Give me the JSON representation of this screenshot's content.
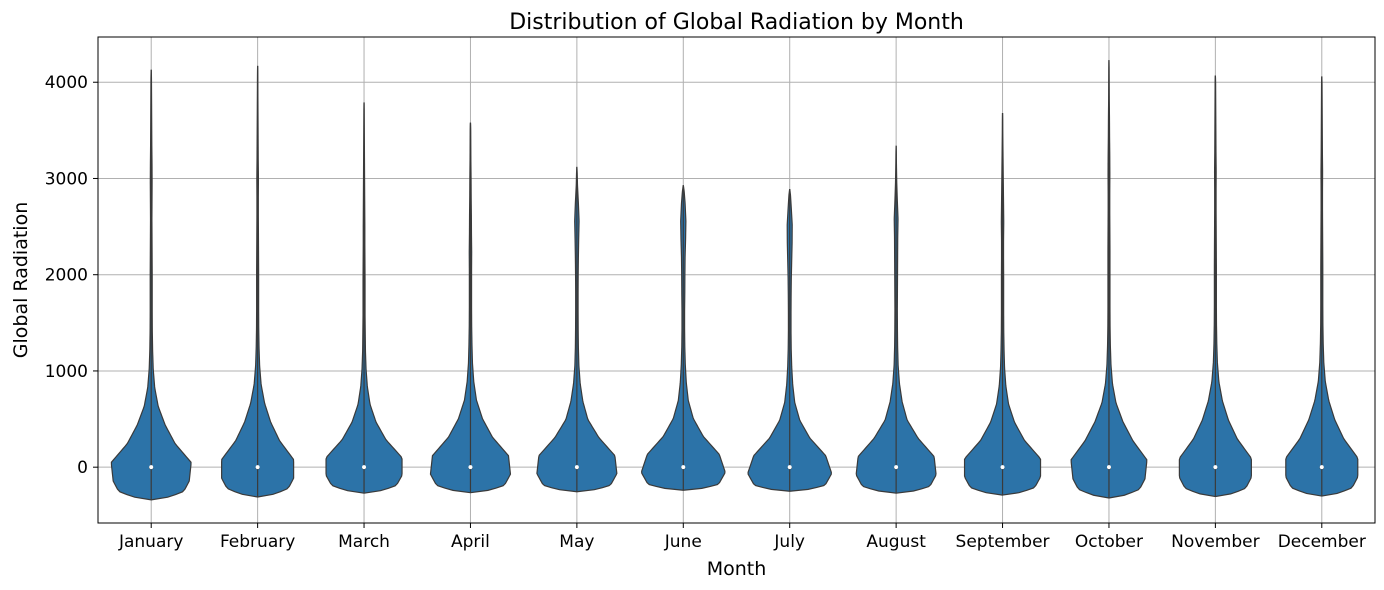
{
  "chart_data": {
    "type": "violin",
    "title": "Distribution of Global Radiation by Month",
    "xlabel": "Month",
    "ylabel": "Global Radiation",
    "ylim": [
      -580,
      4470
    ],
    "yticks": [
      0,
      1000,
      2000,
      3000,
      4000
    ],
    "grid": true,
    "legend": "none",
    "color": "#2c73a8",
    "edge_color": "#3a3a3a",
    "categories": [
      "January",
      "February",
      "March",
      "April",
      "May",
      "June",
      "July",
      "August",
      "September",
      "October",
      "November",
      "December"
    ],
    "series": [
      {
        "min": -340,
        "max": 4130,
        "median": 0,
        "q1": -20,
        "q3": 10,
        "spread": [
          28,
          38,
          40,
          24,
          14,
          7,
          3.5,
          2,
          1.4,
          1.1,
          1.0,
          1.0,
          1.0,
          0.9,
          0.8,
          0.7,
          0.8,
          0.9,
          0.8,
          0.6,
          0.5,
          0.4,
          0.3,
          0.2
        ]
      },
      {
        "min": -310,
        "max": 4170,
        "median": 0,
        "q1": -20,
        "q3": 10,
        "spread": [
          26,
          36,
          36,
          22,
          13,
          7,
          3.5,
          2,
          1.4,
          1.1,
          1.0,
          1.0,
          1.0,
          0.9,
          0.8,
          0.7,
          0.7,
          0.8,
          0.6,
          0.5,
          0.4,
          0.3,
          0.2,
          0.1
        ]
      },
      {
        "min": -270,
        "max": 3790,
        "median": 0,
        "q1": -20,
        "q3": 10,
        "spread": [
          28,
          38,
          38,
          22,
          12,
          6,
          3.3,
          2,
          1.4,
          1.2,
          1.0,
          1.0,
          1.0,
          0.9,
          0.8,
          0.8,
          0.7,
          0.6,
          0.5,
          0.4,
          0.3,
          0.2,
          0.1
        ]
      },
      {
        "min": -265,
        "max": 3580,
        "median": 0,
        "q1": -20,
        "q3": 10,
        "spread": [
          30,
          40,
          38,
          22,
          12,
          6,
          3.3,
          2,
          1.5,
          1.2,
          1.1,
          1.1,
          1.1,
          1.2,
          1.0,
          0.9,
          0.7,
          0.6,
          0.4,
          0.3,
          0.2
        ]
      },
      {
        "min": -255,
        "max": 3120,
        "median": 0,
        "q1": -20,
        "q3": 10,
        "spread": [
          30,
          40,
          38,
          22,
          11,
          6,
          3.3,
          2,
          1.5,
          1.3,
          1.2,
          1.2,
          1.3,
          1.5,
          1.8,
          2.2,
          1.5,
          0.6,
          0.2
        ]
      },
      {
        "min": -240,
        "max": 2930,
        "median": 0,
        "q1": -20,
        "q3": 10,
        "spread": [
          32,
          42,
          36,
          20,
          10,
          5,
          3,
          2,
          1.5,
          1.3,
          1.3,
          1.5,
          1.6,
          1.8,
          2.3,
          2.6,
          1.8,
          0.4
        ]
      },
      {
        "min": -250,
        "max": 2890,
        "median": 0,
        "q1": -20,
        "q3": 10,
        "spread": [
          32,
          42,
          36,
          20,
          10,
          5,
          3,
          2,
          1.5,
          1.3,
          1.3,
          1.4,
          1.6,
          2.0,
          2.4,
          2.5,
          1.5,
          0.4
        ]
      },
      {
        "min": -270,
        "max": 3340,
        "median": 0,
        "q1": -20,
        "q3": 10,
        "spread": [
          30,
          40,
          38,
          22,
          11,
          6,
          3.3,
          2,
          1.5,
          1.3,
          1.2,
          1.3,
          1.4,
          1.5,
          1.6,
          1.9,
          1.2,
          0.6,
          0.3,
          0.1
        ]
      },
      {
        "min": -290,
        "max": 3680,
        "median": 0,
        "q1": -20,
        "q3": 10,
        "spread": [
          28,
          38,
          38,
          22,
          12,
          6,
          3.3,
          2,
          1.5,
          1.2,
          1.1,
          1.1,
          1.1,
          1.0,
          1.0,
          1.2,
          1.0,
          0.8,
          0.6,
          0.4,
          0.2,
          0.1
        ]
      },
      {
        "min": -320,
        "max": 4230,
        "median": 0,
        "q1": -20,
        "q3": 10,
        "spread": [
          26,
          36,
          38,
          24,
          14,
          7,
          3.5,
          2,
          1.4,
          1.1,
          1.0,
          1.0,
          1.0,
          1.0,
          0.9,
          0.8,
          0.8,
          0.9,
          0.8,
          0.6,
          0.5,
          0.3,
          0.2,
          0.1
        ]
      },
      {
        "min": -305,
        "max": 4070,
        "median": 0,
        "q1": -20,
        "q3": 10,
        "spread": [
          26,
          36,
          36,
          22,
          13,
          7,
          3.5,
          2,
          1.4,
          1.1,
          1.0,
          1.0,
          1.0,
          0.9,
          0.8,
          0.7,
          0.7,
          0.8,
          0.6,
          0.5,
          0.4,
          0.3,
          0.2
        ]
      },
      {
        "min": -300,
        "max": 4060,
        "median": 0,
        "q1": -20,
        "q3": 10,
        "spread": [
          26,
          36,
          36,
          22,
          13,
          7,
          3.5,
          2,
          1.4,
          1.1,
          1.0,
          1.0,
          1.0,
          0.9,
          0.8,
          0.7,
          0.7,
          0.8,
          0.6,
          0.5,
          0.4,
          0.3,
          0.2
        ]
      }
    ]
  }
}
